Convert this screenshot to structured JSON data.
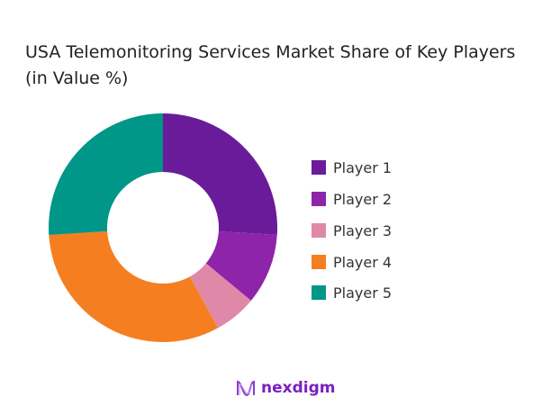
{
  "chart_data": {
    "type": "pie",
    "variant": "donut",
    "title": "USA Telemonitoring Services Market Share of Key Players (in Value %)",
    "categories": [
      "Player 1",
      "Player 2",
      "Player 3",
      "Player 4",
      "Player 5"
    ],
    "values": [
      26,
      10,
      6,
      32,
      26
    ],
    "unit": "%",
    "colors": [
      "#6a1b9a",
      "#8e24aa",
      "#e088a8",
      "#f57f20",
      "#009688"
    ],
    "legend": "right"
  },
  "brand": {
    "name": "nexdigm",
    "color": "#7a1fc0"
  }
}
